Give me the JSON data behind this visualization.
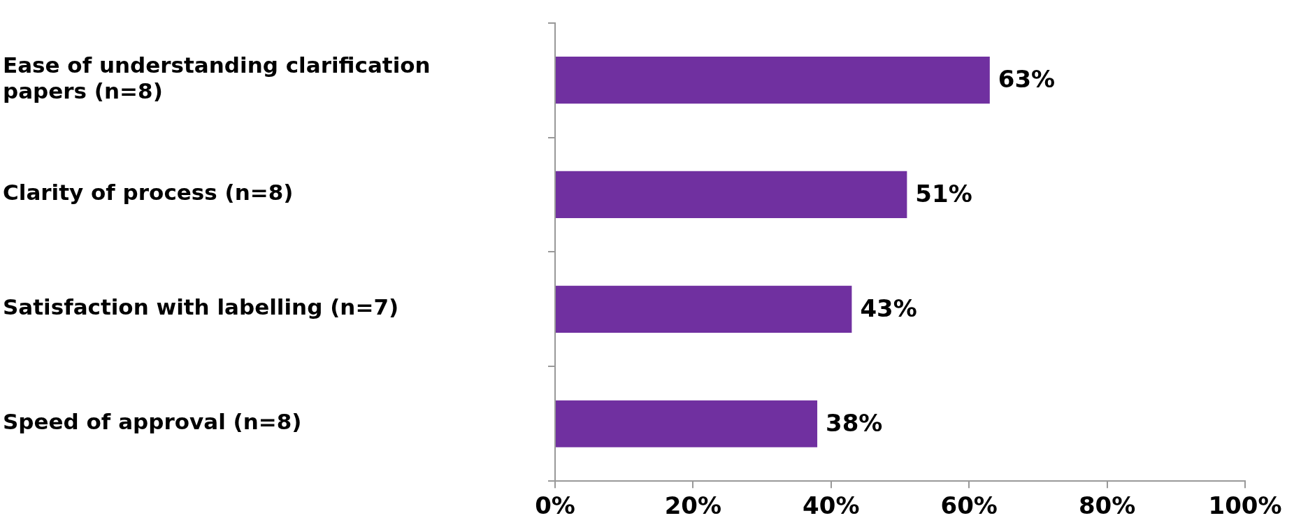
{
  "chart_data": {
    "type": "bar",
    "orientation": "horizontal",
    "categories": [
      "Ease of understanding clarification papers (n=8)",
      "Clarity of process (n=8)",
      "Satisfaction with labelling (n=7)",
      "Speed of approval (n=8)"
    ],
    "values": [
      63,
      51,
      43,
      38
    ],
    "color": "#7030a0",
    "value_labels": [
      "63%",
      "51%",
      "43%",
      "38%"
    ],
    "xlim": [
      0,
      100
    ],
    "xticks": [
      {
        "value": 0,
        "label": "0%"
      },
      {
        "value": 20,
        "label": "20%"
      },
      {
        "value": 40,
        "label": "40%"
      },
      {
        "value": 60,
        "label": "60%"
      },
      {
        "value": 80,
        "label": "80%"
      },
      {
        "value": 100,
        "label": "100%"
      }
    ],
    "grid": false
  }
}
